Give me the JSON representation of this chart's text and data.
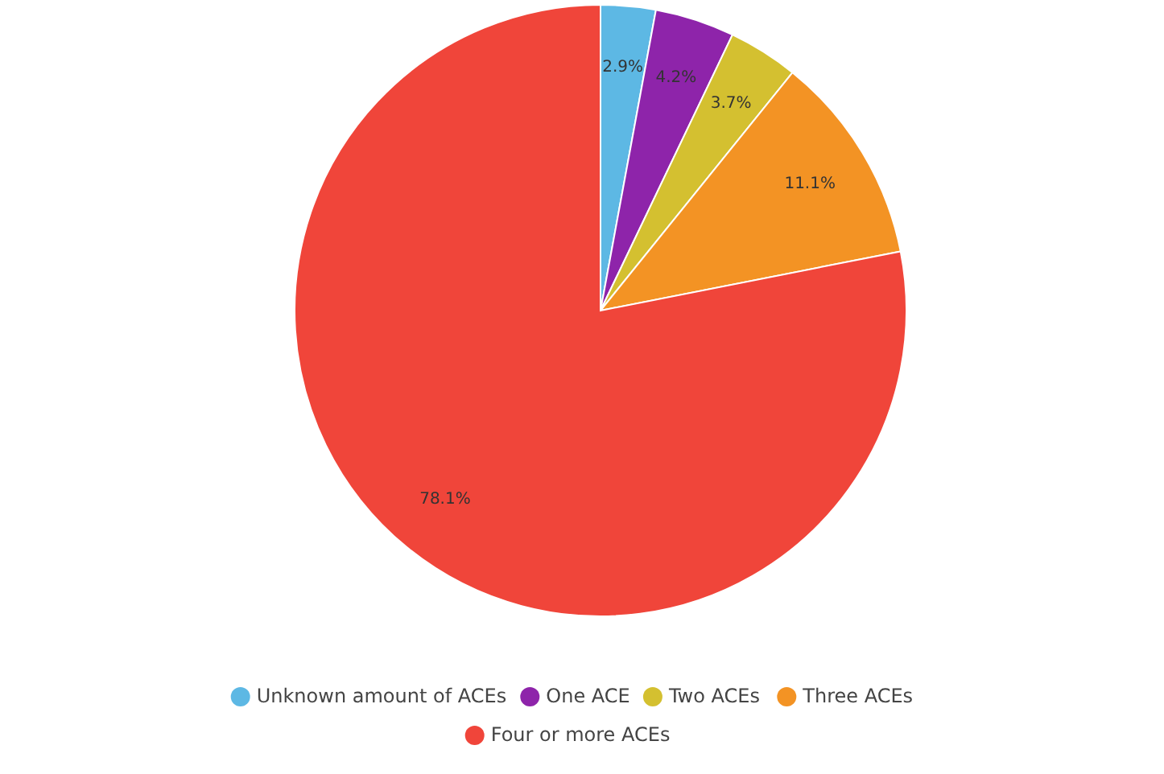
{
  "chart_data": {
    "type": "pie",
    "categories": [
      "Unknown amount of ACEs",
      "One ACE",
      "Two ACEs",
      "Three ACEs",
      "Four or more ACEs"
    ],
    "values": [
      2.9,
      4.2,
      3.7,
      11.1,
      78.1
    ],
    "colors": [
      "#5db8e4",
      "#8e24aa",
      "#d4c030",
      "#f39324",
      "#f0453a"
    ],
    "value_labels": [
      "2.9%",
      "4.2%",
      "3.7%",
      "11.1%",
      "78.1%"
    ],
    "legend": "bottom"
  }
}
